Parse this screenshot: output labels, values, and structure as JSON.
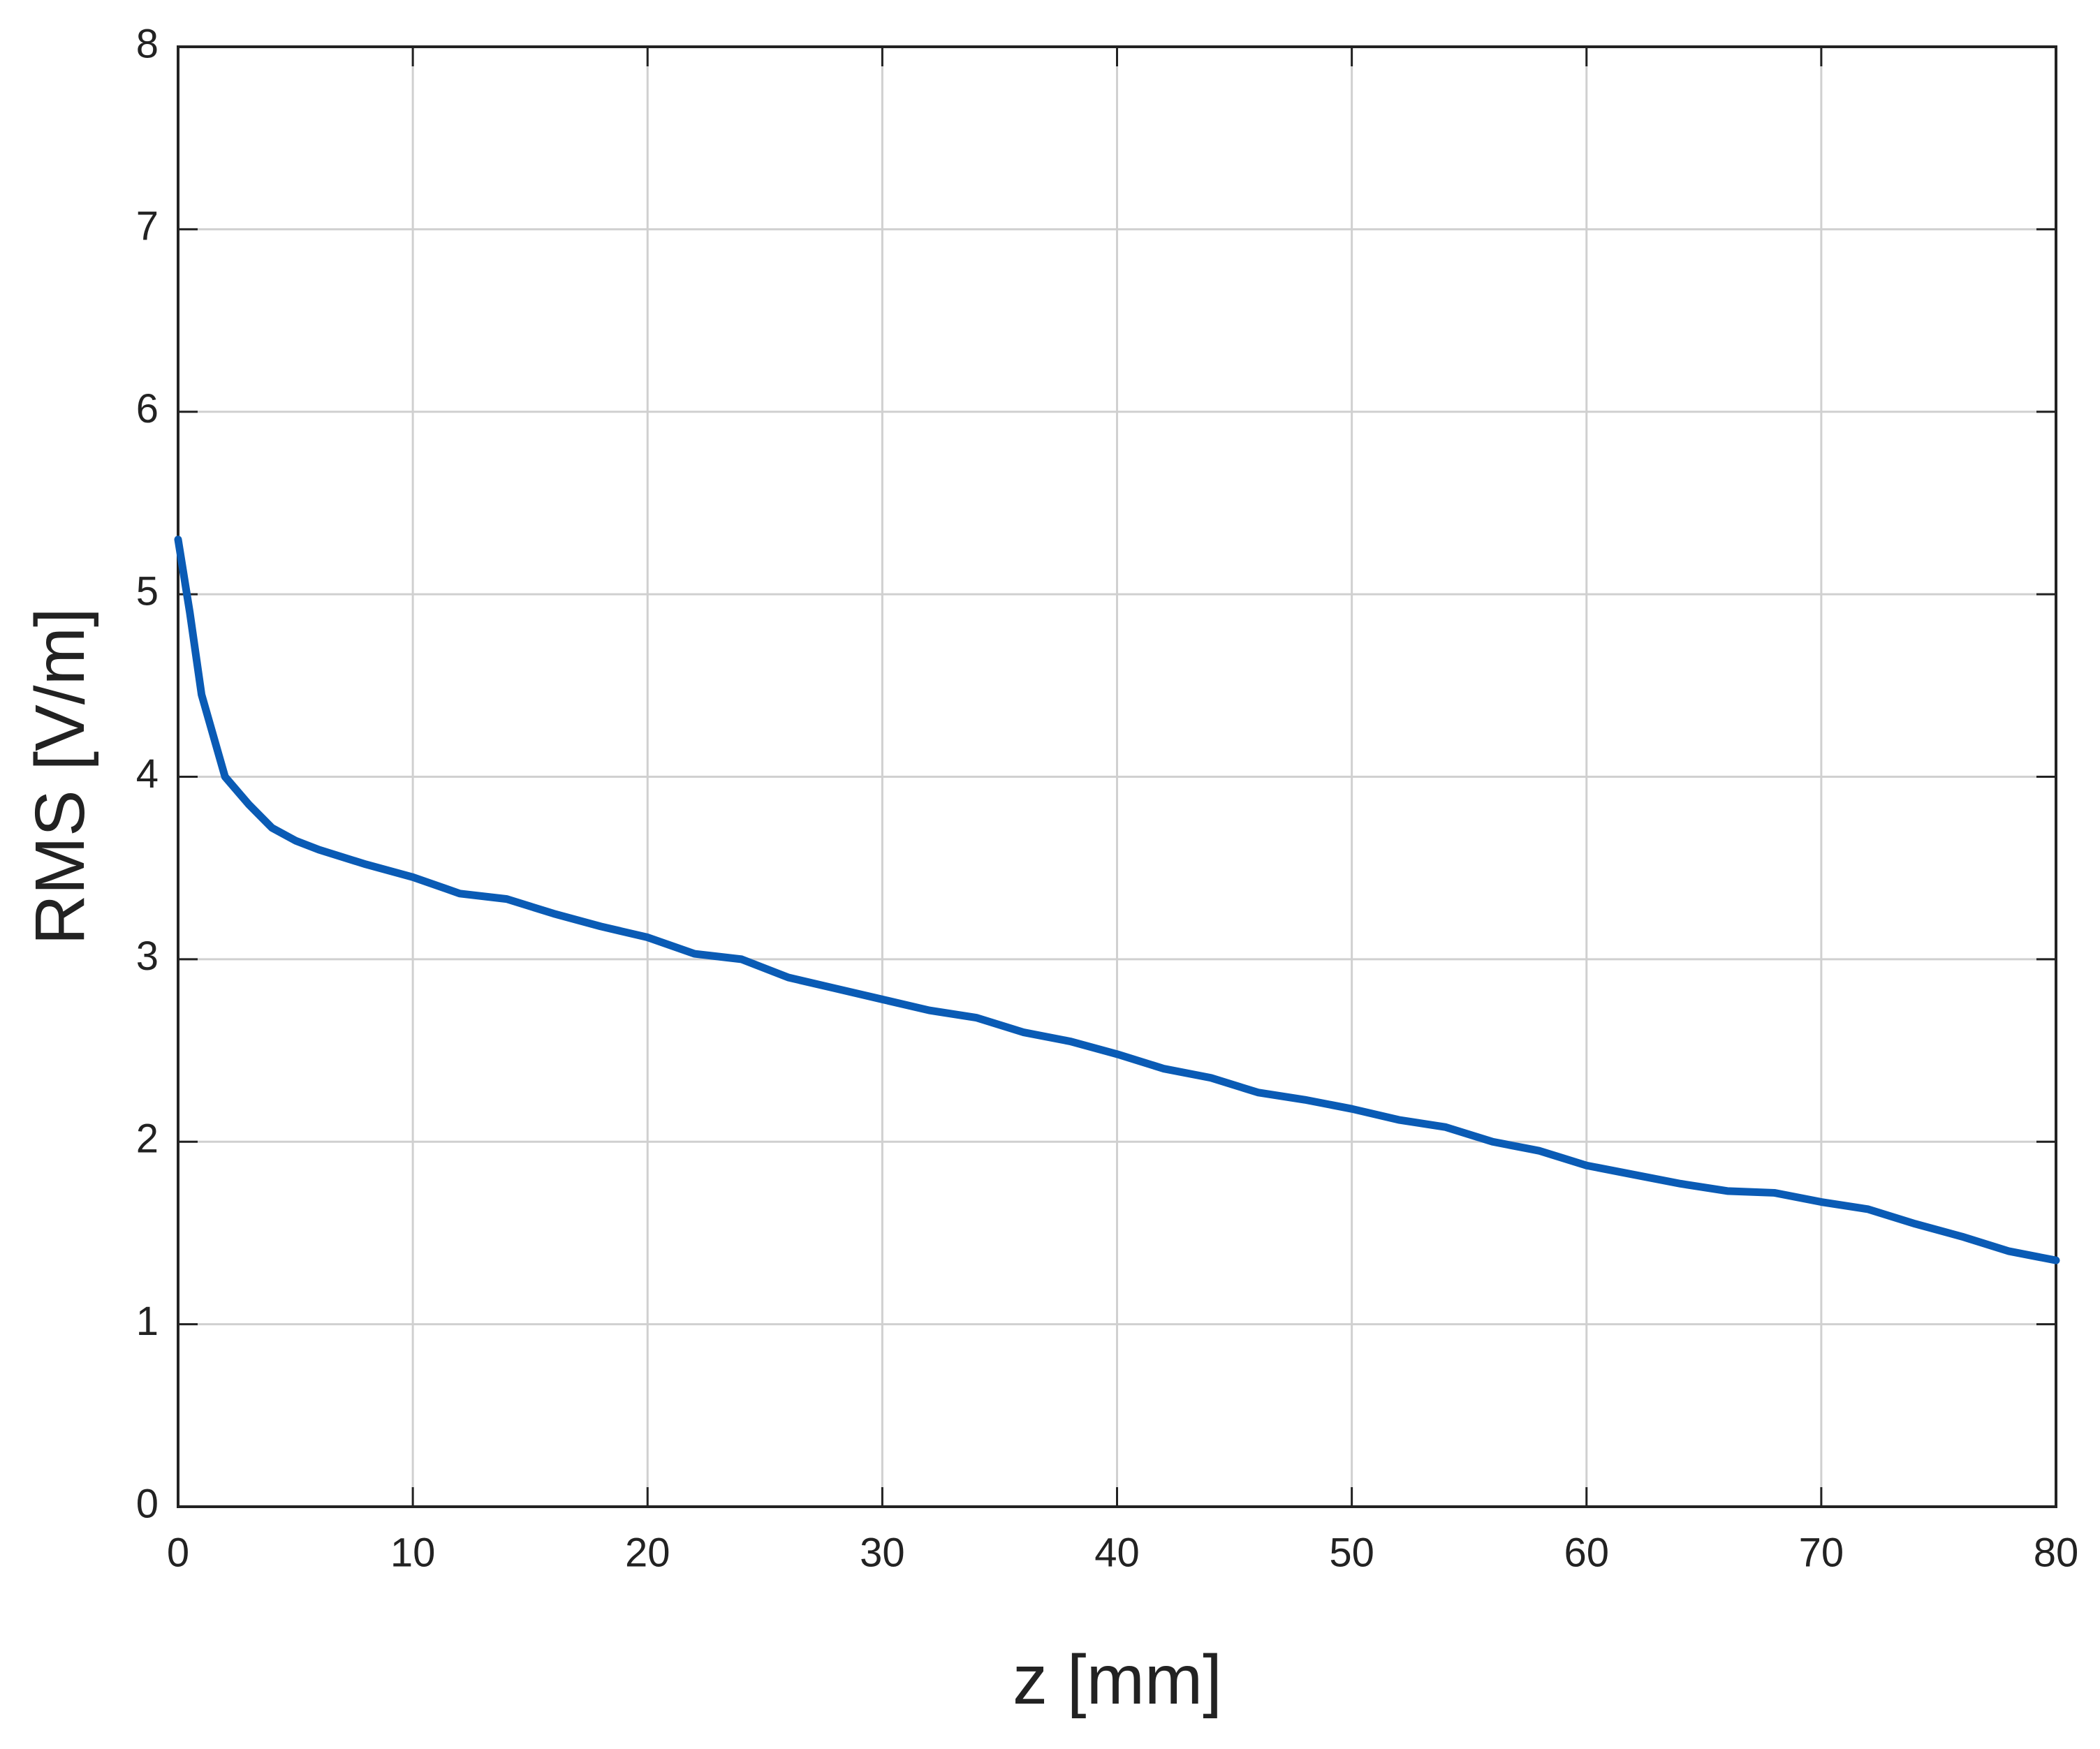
{
  "chart_data": {
    "type": "line",
    "x_label": "z [mm]",
    "y_label": "RMS [V/m]",
    "x": [
      0,
      0.5,
      1,
      2,
      3,
      4,
      5,
      6,
      8,
      10,
      12,
      14,
      16,
      18,
      20,
      22,
      24,
      26,
      28,
      30,
      32,
      34,
      36,
      38,
      40,
      42,
      44,
      46,
      48,
      50,
      52,
      54,
      56,
      58,
      60,
      62,
      64,
      66,
      68,
      70,
      72,
      74,
      76,
      78,
      80
    ],
    "series": [
      {
        "color": "#0a5bb5",
        "values": [
          5.3,
          4.9,
          4.45,
          4.0,
          3.85,
          3.72,
          3.65,
          3.6,
          3.52,
          3.45,
          3.36,
          3.33,
          3.25,
          3.18,
          3.12,
          3.03,
          3.0,
          2.9,
          2.84,
          2.78,
          2.72,
          2.68,
          2.6,
          2.55,
          2.48,
          2.4,
          2.35,
          2.27,
          2.23,
          2.18,
          2.12,
          2.08,
          2.0,
          1.95,
          1.87,
          1.82,
          1.77,
          1.73,
          1.72,
          1.67,
          1.63,
          1.55,
          1.48,
          1.4,
          1.35
        ]
      }
    ],
    "xlim": [
      0,
      80
    ],
    "ylim": [
      0,
      8
    ],
    "xticks": [
      0,
      10,
      20,
      30,
      40,
      50,
      60,
      70,
      80
    ],
    "yticks": [
      0,
      1,
      2,
      3,
      4,
      5,
      6,
      7,
      8
    ],
    "grid": true
  }
}
